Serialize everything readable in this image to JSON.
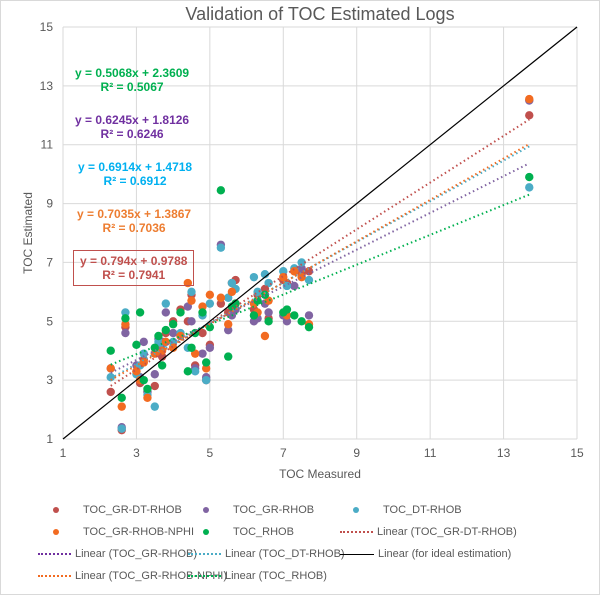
{
  "chart_data": {
    "type": "scatter",
    "title": "Validation of TOC Estimated Logs",
    "xlabel": "TOC Measured",
    "ylabel": "TOC Estimated",
    "xlim": [
      1,
      15
    ],
    "ylim": [
      1,
      15
    ],
    "xticks": [
      1,
      3,
      5,
      7,
      9,
      11,
      13,
      15
    ],
    "yticks": [
      1,
      3,
      5,
      7,
      9,
      11,
      13,
      15
    ],
    "grid": true,
    "legend_position": "bottom",
    "series": [
      {
        "name": "TOC_GR-DT-RHOB",
        "color": "#c0504d",
        "eq_color": "#c0504d",
        "trend_label": "Linear (TOC_GR-DT-RHOB)",
        "equation": "y = 0.794x + 0.9788",
        "r2": "R² = 0.7941",
        "slope": 0.794,
        "intercept": 0.9788
      },
      {
        "name": "TOC_GR-RHOB",
        "color": "#8064a2",
        "eq_color": "#7030a0",
        "trend_label": "Linear (TOC_GR-RHOB)",
        "equation": "y = 0.6245x + 1.8126",
        "r2": "R² = 0.6246",
        "slope": 0.6245,
        "intercept": 1.8126
      },
      {
        "name": "TOC_DT-RHOB",
        "color": "#4bacc6",
        "eq_color": "#00b0f0",
        "trend_label": "Linear (TOC_DT-RHOB)",
        "equation": "y = 0.6914x + 1.4718",
        "r2": "R² = 0.6912",
        "slope": 0.6914,
        "intercept": 1.4718
      },
      {
        "name": "TOC_GR-RHOB-NPHI",
        "color": "#f26b21",
        "eq_color": "#ed7d31",
        "trend_label": "Linear (TOC_GR-RHOB-NPHI)",
        "equation": "y = 0.7035x + 1.3867",
        "r2": "R² = 0.7036",
        "slope": 0.7035,
        "intercept": 1.3867
      },
      {
        "name": "TOC_RHOB",
        "color": "#00b050",
        "eq_color": "#00b050",
        "trend_label": "Linear (TOC_RHOB)",
        "equation": "y = 0.5068x + 2.3609",
        "r2": "R² = 0.5067",
        "slope": 0.5068,
        "intercept": 2.3609
      }
    ],
    "ideal_line": {
      "label": "Linear (for ideal estimation)",
      "color": "#000000"
    },
    "samples_x": [
      2.3,
      2.6,
      2.7,
      3.0,
      3.1,
      3.2,
      3.3,
      3.5,
      3.6,
      3.7,
      3.8,
      4.0,
      4.2,
      4.4,
      4.5,
      4.6,
      4.8,
      4.9,
      5.0,
      5.3,
      5.5,
      5.6,
      5.7,
      6.2,
      6.3,
      6.5,
      6.6,
      7.0,
      7.1,
      7.3,
      7.5,
      7.7,
      13.7
    ],
    "samples_y": [
      [
        2.6,
        3.4,
        3.1,
        3.4,
        4.0
      ],
      [
        1.3,
        1.4,
        1.35,
        2.1,
        2.4
      ],
      [
        4.8,
        4.6,
        5.3,
        4.9,
        5.1
      ],
      [
        3.3,
        3.5,
        3.2,
        3.3,
        4.2
      ],
      [
        2.9,
        3.1,
        3.5,
        3.0,
        5.3
      ],
      [
        3.7,
        4.3,
        3.9,
        3.6,
        3.0
      ],
      [
        2.6,
        2.6,
        2.5,
        2.4,
        2.7
      ],
      [
        2.8,
        3.2,
        2.1,
        3.9,
        4.1
      ],
      [
        4.2,
        4.4,
        4.3,
        4.0,
        4.5
      ],
      [
        3.8,
        4.3,
        4.2,
        4.0,
        3.5
      ],
      [
        4.6,
        5.3,
        5.6,
        4.3,
        4.7
      ],
      [
        5.0,
        4.6,
        4.3,
        4.1,
        4.9
      ],
      [
        5.4,
        4.5,
        4.6,
        4.5,
        5.3
      ],
      [
        5.0,
        5.5,
        4.1,
        6.3,
        3.3
      ],
      [
        5.9,
        5.0,
        6.0,
        5.7,
        4.1
      ],
      [
        3.5,
        3.4,
        3.3,
        3.9,
        4.6
      ],
      [
        4.6,
        3.9,
        5.2,
        5.5,
        5.3
      ],
      [
        3.0,
        3.1,
        3.0,
        3.4,
        3.6
      ],
      [
        4.2,
        4.1,
        5.6,
        5.9,
        4.8
      ],
      [
        5.6,
        7.6,
        7.5,
        5.8,
        9.45
      ],
      [
        5.3,
        4.7,
        5.8,
        4.9,
        3.8
      ],
      [
        6.3,
        5.2,
        6.3,
        6.0,
        5.5
      ],
      [
        6.4,
        5.4,
        6.1,
        5.6,
        5.6
      ],
      [
        5.4,
        5.0,
        6.5,
        5.6,
        5.2
      ],
      [
        5.9,
        5.1,
        6.0,
        5.3,
        5.7
      ],
      [
        6.1,
        5.6,
        6.6,
        4.5,
        5.9
      ],
      [
        5.1,
        5.3,
        6.3,
        5.7,
        5.0
      ],
      [
        6.4,
        5.2,
        6.7,
        6.5,
        5.3
      ],
      [
        6.3,
        5.0,
        6.2,
        5.2,
        5.4
      ],
      [
        6.7,
        6.2,
        6.8,
        6.7,
        5.2
      ],
      [
        6.6,
        6.8,
        7.0,
        6.5,
        5.0
      ],
      [
        6.7,
        5.2,
        6.4,
        4.9,
        4.8
      ],
      [
        12.0,
        12.5,
        9.55,
        12.55,
        9.9
      ]
    ]
  }
}
